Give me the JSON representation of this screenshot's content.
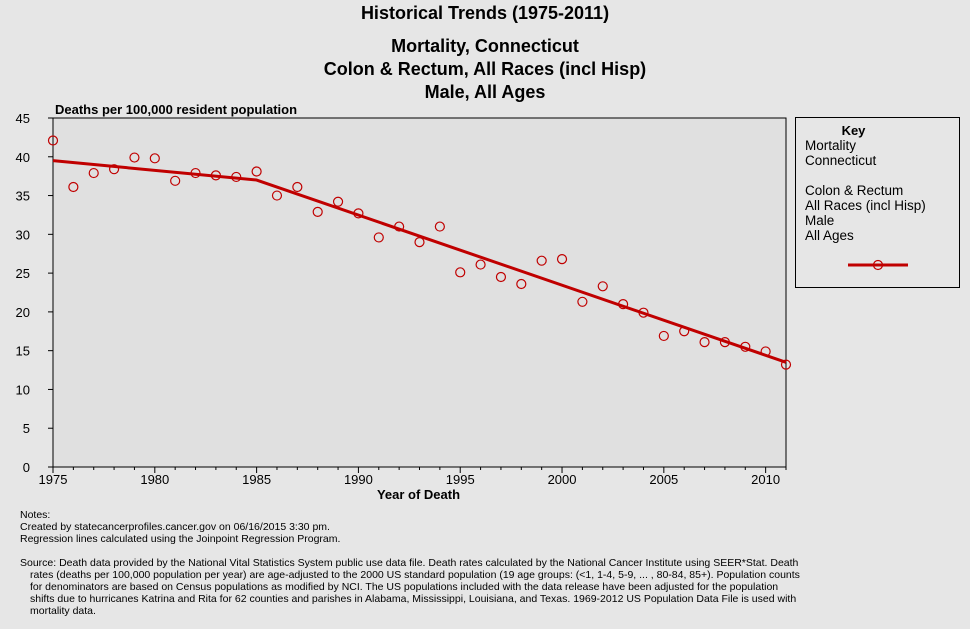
{
  "titles": {
    "main": "Historical Trends (1975-2011)",
    "sub1": "Mortality, Connecticut",
    "sub2": "Colon & Rectum, All Races (incl Hisp)",
    "sub3": "Male, All Ages"
  },
  "key": {
    "title": "Key",
    "lines": [
      "Mortality",
      "Connecticut",
      "",
      "Colon & Rectum",
      "All Races (incl Hisp)",
      "Male",
      "All Ages"
    ]
  },
  "notes": {
    "heading": "Notes:",
    "created": "Created by statecancerprofiles.cancer.gov on 06/16/2015 3:30 pm.",
    "regression": "Regression lines calculated using the Joinpoint Regression Program.",
    "source": "Source: Death data provided by the National Vital Statistics System public use data file. Death rates calculated by the National Cancer Institute using SEER*Stat. Death rates (deaths per 100,000 population per year) are age-adjusted to the 2000 US standard population (19 age groups: (<1, 1-4, 5-9, ... , 80-84, 85+). Population counts for denominators are based on Census populations as modified by NCI. The US populations included with the data release have been adjusted for the population shifts due to hurricanes Katrina and Rita for 62 counties and parishes in Alabama, Mississippi, Louisiana, and Texas. 1969-2012 US Population Data File is used with mortality data."
  },
  "chart_data": {
    "type": "scatter",
    "title": "Historical Trends (1975-2011)",
    "xlabel": "Year of Death",
    "ylabel": "Deaths per 100,000 resident population",
    "xlim": [
      1975,
      2011
    ],
    "ylim": [
      0,
      45
    ],
    "xticks": [
      1975,
      1980,
      1985,
      1990,
      1995,
      2000,
      2005,
      2010
    ],
    "yticks": [
      0,
      5,
      10,
      15,
      20,
      25,
      30,
      35,
      40,
      45
    ],
    "grid": false,
    "legend_position": "right",
    "colors": {
      "series": "#c00000",
      "plot_bg": "#e0e0e0"
    },
    "series": [
      {
        "kind": "points",
        "x": [
          1975,
          1976,
          1977,
          1978,
          1979,
          1980,
          1981,
          1982,
          1983,
          1984,
          1985,
          1986,
          1987,
          1988,
          1989,
          1990,
          1991,
          1992,
          1993,
          1994,
          1995,
          1996,
          1997,
          1998,
          1999,
          2000,
          2001,
          2002,
          2003,
          2004,
          2005,
          2006,
          2007,
          2008,
          2009,
          2010,
          2011
        ],
        "y": [
          42.1,
          36.1,
          37.9,
          38.4,
          39.9,
          39.8,
          36.9,
          37.9,
          37.6,
          37.4,
          38.1,
          35.0,
          36.1,
          32.9,
          34.2,
          32.7,
          29.6,
          31.0,
          29.0,
          31.0,
          25.1,
          26.1,
          24.5,
          23.6,
          26.6,
          26.8,
          21.3,
          23.3,
          21.0,
          19.9,
          16.9,
          17.5,
          16.1,
          16.1,
          15.5,
          14.9,
          13.2
        ]
      },
      {
        "kind": "line",
        "x": [
          1975,
          1985,
          2011
        ],
        "y": [
          39.5,
          37.0,
          13.5
        ]
      }
    ]
  }
}
